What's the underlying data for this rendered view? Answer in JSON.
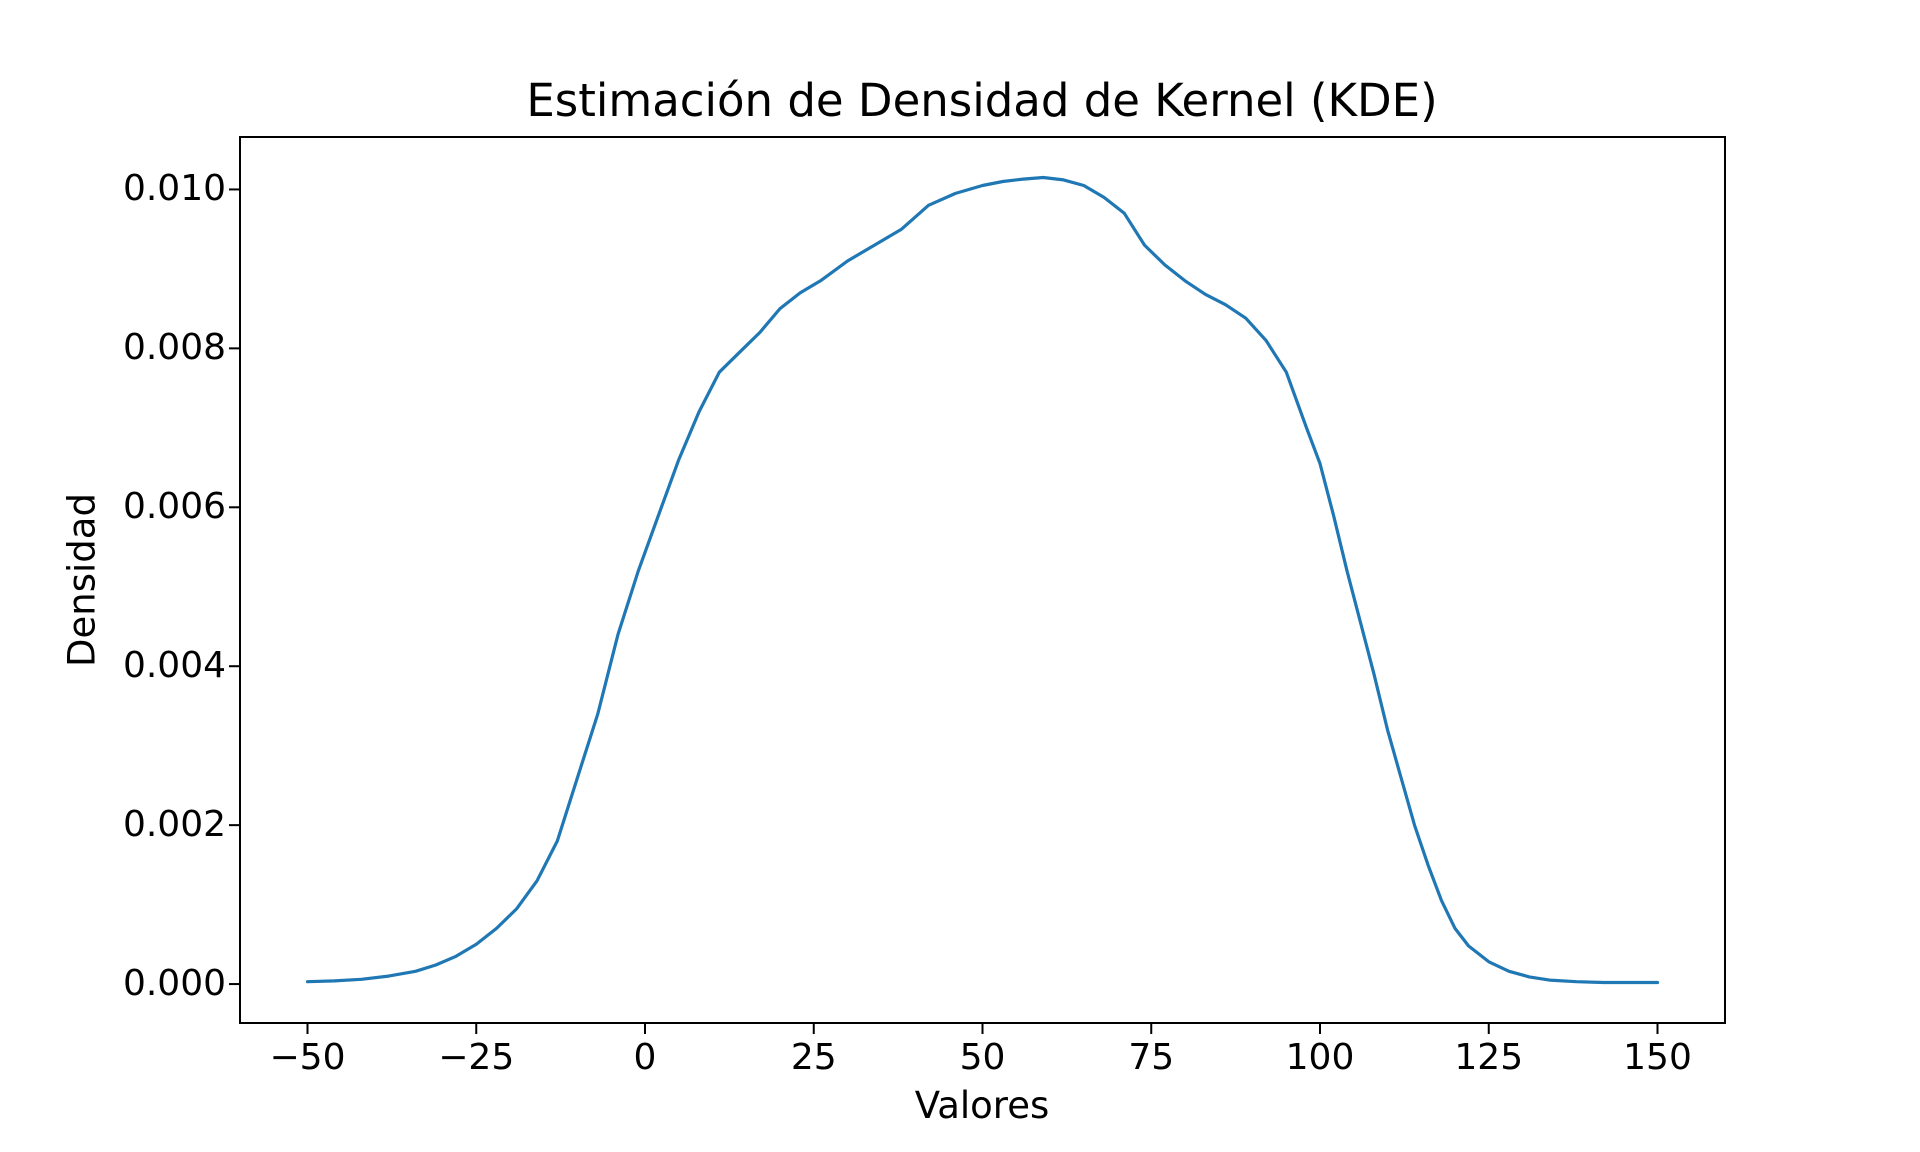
{
  "figure": {
    "background": "#ffffff",
    "spine_color": "#000000",
    "text_color": "#000000"
  },
  "chart_data": {
    "type": "line",
    "title": "Estimación de Densidad de Kernel (KDE)",
    "xlabel": "Valores",
    "ylabel": "Densidad",
    "xlim": [
      -60,
      160
    ],
    "ylim": [
      -0.00049,
      0.01066
    ],
    "xticks": [
      -50,
      -25,
      0,
      25,
      50,
      75,
      100,
      125,
      150
    ],
    "xtick_labels": [
      "−50",
      "−25",
      "0",
      "25",
      "50",
      "75",
      "100",
      "125",
      "150"
    ],
    "yticks": [
      0.0,
      0.002,
      0.004,
      0.006,
      0.008,
      0.01
    ],
    "ytick_labels": [
      "0.000",
      "0.002",
      "0.004",
      "0.006",
      "0.008",
      "0.010"
    ],
    "grid": false,
    "legend_position": "none",
    "line_color": "#1f77b4",
    "line_width": 3.2,
    "series": [
      {
        "name": "KDE",
        "x": [
          -50,
          -46,
          -42,
          -38,
          -34,
          -31,
          -28,
          -25,
          -22,
          -19,
          -16,
          -13,
          -10,
          -7,
          -4,
          -1,
          2,
          5,
          8,
          11,
          14,
          17,
          20,
          23,
          26,
          30,
          34,
          38,
          42,
          46,
          50,
          53,
          56,
          59,
          62,
          65,
          68,
          71,
          74,
          77,
          80,
          83,
          86,
          89,
          92,
          95,
          98,
          100,
          102,
          104,
          106,
          108,
          110,
          112,
          114,
          116,
          118,
          120,
          122,
          125,
          128,
          131,
          134,
          138,
          142,
          146,
          150
        ],
        "y": [
          3e-05,
          4e-05,
          6e-05,
          0.0001,
          0.00016,
          0.00024,
          0.00035,
          0.0005,
          0.0007,
          0.00095,
          0.0013,
          0.0018,
          0.0026,
          0.0034,
          0.0044,
          0.0052,
          0.0059,
          0.0066,
          0.0072,
          0.0077,
          0.00795,
          0.0082,
          0.0085,
          0.0087,
          0.00885,
          0.0091,
          0.0093,
          0.0095,
          0.0098,
          0.00995,
          0.01005,
          0.0101,
          0.01013,
          0.01015,
          0.01012,
          0.01005,
          0.0099,
          0.0097,
          0.0093,
          0.00905,
          0.00885,
          0.00868,
          0.00855,
          0.00838,
          0.0081,
          0.0077,
          0.007,
          0.00655,
          0.0059,
          0.0052,
          0.00455,
          0.0039,
          0.0032,
          0.0026,
          0.002,
          0.0015,
          0.00105,
          0.0007,
          0.00048,
          0.00028,
          0.00016,
          9e-05,
          5e-05,
          3e-05,
          2e-05,
          2e-05,
          2e-05
        ]
      }
    ]
  }
}
